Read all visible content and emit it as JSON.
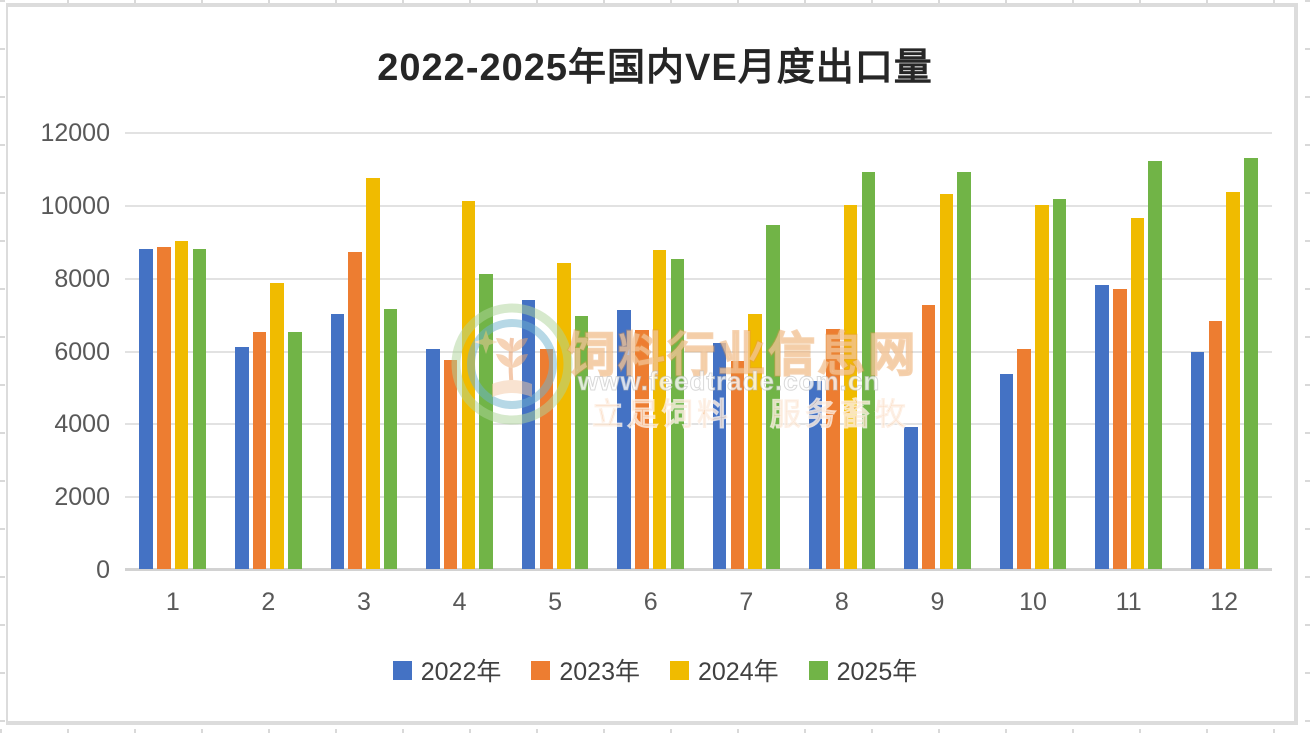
{
  "chart_data": {
    "type": "bar",
    "title": "2022-2025年国内VE月度出口量",
    "categories": [
      "1",
      "2",
      "3",
      "4",
      "5",
      "6",
      "7",
      "8",
      "9",
      "10",
      "11",
      "12"
    ],
    "series": [
      {
        "name": "2022年",
        "color": "#4472C4",
        "values": [
          8800,
          6100,
          7000,
          6050,
          7400,
          7100,
          6200,
          5150,
          3900,
          5350,
          7800,
          5950
        ]
      },
      {
        "name": "2023年",
        "color": "#ED7D31",
        "values": [
          8850,
          6500,
          8700,
          5750,
          6050,
          6550,
          5700,
          6600,
          7250,
          6050,
          7700,
          6800
        ]
      },
      {
        "name": "2024年",
        "color": "#F0BB00",
        "values": [
          9000,
          7850,
          10750,
          10100,
          8400,
          8750,
          7000,
          10000,
          10300,
          10000,
          9650,
          10350
        ]
      },
      {
        "name": "2025年",
        "color": "#71B447",
        "values": [
          8800,
          6500,
          7150,
          8100,
          6950,
          8500,
          9450,
          10900,
          10900,
          10150,
          11200,
          11300
        ]
      }
    ],
    "ylim": [
      0,
      12000
    ],
    "ytick_step": 2000,
    "yticks": [
      "0",
      "2000",
      "4000",
      "6000",
      "8000",
      "10000",
      "12000"
    ],
    "grid": "horizontal",
    "legend_position": "bottom"
  },
  "watermark": {
    "site_name": "饲料行业信息网",
    "url": "www.feedtrade.com.cn",
    "slogan_left": "立足饲料",
    "slogan_right": "服务畜牧",
    "logo": "feedtrade-wheat-ring-logo"
  }
}
